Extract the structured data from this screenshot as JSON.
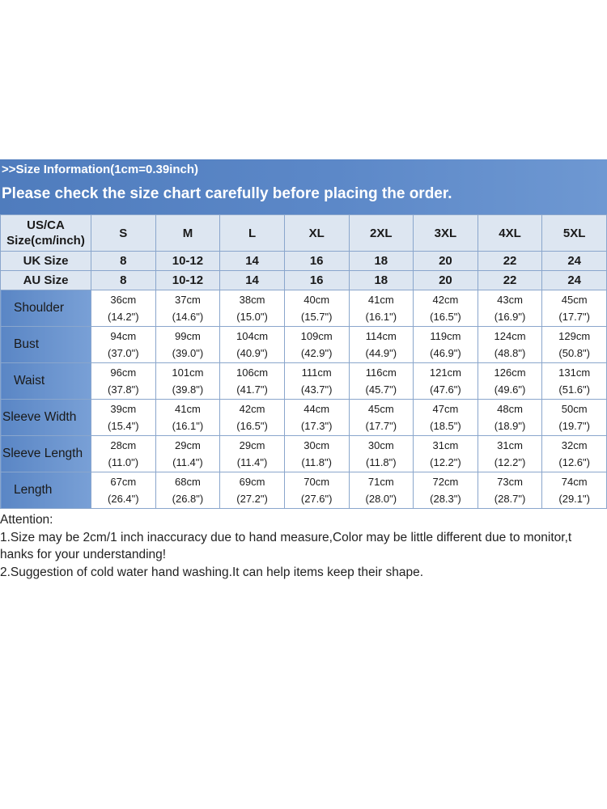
{
  "banner": {
    "info": ">>Size Information(1cm=0.39inch)",
    "notice": "Please check the size chart carefully before placing the order."
  },
  "table": {
    "header_label": [
      "US/CA",
      "Size(cm/inch)"
    ],
    "sizes": [
      "S",
      "M",
      "L",
      "XL",
      "2XL",
      "3XL",
      "4XL",
      "5XL"
    ],
    "uk": {
      "label": "UK Size",
      "values": [
        "8",
        "10-12",
        "14",
        "16",
        "18",
        "20",
        "22",
        "24"
      ]
    },
    "au": {
      "label": "AU Size",
      "values": [
        "8",
        "10-12",
        "14",
        "16",
        "18",
        "20",
        "22",
        "24"
      ]
    },
    "measurements": [
      {
        "label": "Shoulder",
        "cm": [
          "36cm",
          "37cm",
          "38cm",
          "40cm",
          "41cm",
          "42cm",
          "43cm",
          "45cm"
        ],
        "inch": [
          "(14.2\")",
          "(14.6\")",
          "(15.0\")",
          "(15.7\")",
          "(16.1\")",
          "(16.5\")",
          "(16.9\")",
          "(17.7\")"
        ]
      },
      {
        "label": "Bust",
        "cm": [
          "94cm",
          "99cm",
          "104cm",
          "109cm",
          "114cm",
          "119cm",
          "124cm",
          "129cm"
        ],
        "inch": [
          "(37.0\")",
          "(39.0\")",
          "(40.9\")",
          "(42.9\")",
          "(44.9\")",
          "(46.9\")",
          "(48.8\")",
          "(50.8\")"
        ]
      },
      {
        "label": "Waist",
        "cm": [
          "96cm",
          "101cm",
          "106cm",
          "111cm",
          "116cm",
          "121cm",
          "126cm",
          "131cm"
        ],
        "inch": [
          "(37.8\")",
          "(39.8\")",
          "(41.7\")",
          "(43.7\")",
          "(45.7\")",
          "(47.6\")",
          "(49.6\")",
          "(51.6\")"
        ]
      },
      {
        "label": "Sleeve Width",
        "cm": [
          "39cm",
          "41cm",
          "42cm",
          "44cm",
          "45cm",
          "47cm",
          "48cm",
          "50cm"
        ],
        "inch": [
          "(15.4\")",
          "(16.1\")",
          "(16.5\")",
          "(17.3\")",
          "(17.7\")",
          "(18.5\")",
          "(18.9\")",
          "(19.7\")"
        ]
      },
      {
        "label": "Sleeve Length",
        "cm": [
          "28cm",
          "29cm",
          "29cm",
          "30cm",
          "30cm",
          "31cm",
          "31cm",
          "32cm"
        ],
        "inch": [
          "(11.0\")",
          "(11.4\")",
          "(11.4\")",
          "(11.8\")",
          "(11.8\")",
          "(12.2\")",
          "(12.2\")",
          "(12.6\")"
        ]
      },
      {
        "label": "Length",
        "cm": [
          "67cm",
          "68cm",
          "69cm",
          "70cm",
          "71cm",
          "72cm",
          "73cm",
          "74cm"
        ],
        "inch": [
          "(26.4\")",
          "(26.8\")",
          "(27.2\")",
          "(27.6\")",
          "(28.0\")",
          "(28.3\")",
          "(28.7\")",
          "(29.1\")"
        ]
      }
    ]
  },
  "notes": {
    "title": "Attention:",
    "line1a": "1.Size may be 2cm/1 inch inaccuracy due to hand measure,Color may be little different due to monitor,t",
    "line1b": "hanks for your understanding!",
    "line2": "2.Suggestion of cold water hand washing.It can help items keep their shape."
  },
  "colors": {
    "banner": "#5c88c8",
    "label_cell": "#6a93cf",
    "header_cell": "#dde6f1",
    "grid_line": "#8aa6cc"
  }
}
